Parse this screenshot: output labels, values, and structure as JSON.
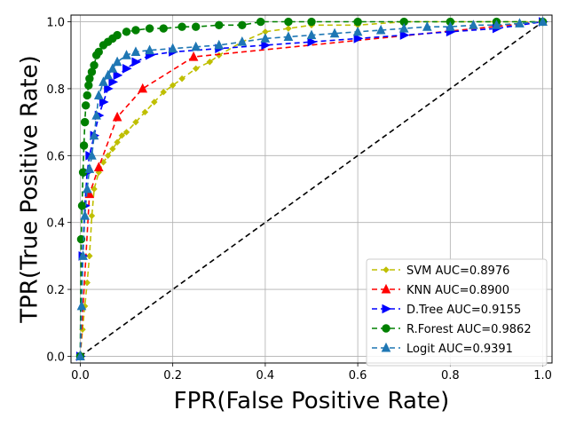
{
  "chart_data": {
    "type": "line",
    "title": "",
    "xlabel": "FPR(False Positive Rate)",
    "ylabel": "TPR(True Positive Rate)",
    "xlim": [
      -0.02,
      1.02
    ],
    "ylim": [
      -0.02,
      1.02
    ],
    "xticks": [
      "0.0",
      "0.2",
      "0.4",
      "0.6",
      "0.8",
      "1.0"
    ],
    "yticks": [
      "0.0",
      "0.2",
      "0.4",
      "0.6",
      "0.8",
      "1.0"
    ],
    "grid": true,
    "legend_position": "lower-right",
    "reference_line": {
      "x": [
        0,
        1
      ],
      "y": [
        0,
        1
      ],
      "style": "dashed",
      "color": "#000000"
    },
    "series": [
      {
        "name": "SVM AUC=0.8976",
        "color": "#bfbf00",
        "marker": "diamond-small",
        "x": [
          0,
          0.005,
          0.01,
          0.015,
          0.02,
          0.025,
          0.03,
          0.04,
          0.05,
          0.06,
          0.07,
          0.08,
          0.09,
          0.1,
          0.12,
          0.14,
          0.16,
          0.18,
          0.2,
          0.22,
          0.25,
          0.28,
          0.3,
          0.35,
          0.4,
          0.45,
          0.5,
          0.6,
          0.7,
          0.8,
          0.9,
          1.0
        ],
        "y": [
          0,
          0.08,
          0.15,
          0.22,
          0.3,
          0.42,
          0.5,
          0.55,
          0.58,
          0.6,
          0.62,
          0.64,
          0.66,
          0.67,
          0.7,
          0.73,
          0.76,
          0.79,
          0.81,
          0.83,
          0.86,
          0.88,
          0.9,
          0.94,
          0.97,
          0.98,
          0.99,
          0.99,
          1.0,
          1.0,
          1.0,
          1.0
        ]
      },
      {
        "name": "KNN AUC=0.8900",
        "color": "#ff0000",
        "marker": "triangle-up",
        "x": [
          0,
          0.02,
          0.04,
          0.08,
          0.135,
          0.245,
          1.0
        ],
        "y": [
          0,
          0.485,
          0.565,
          0.715,
          0.8,
          0.895,
          1.0
        ]
      },
      {
        "name": "D.Tree AUC=0.9155",
        "color": "#0000ff",
        "marker": "triangle-right",
        "x": [
          0,
          0.005,
          0.01,
          0.015,
          0.02,
          0.03,
          0.04,
          0.05,
          0.06,
          0.07,
          0.08,
          0.1,
          0.12,
          0.15,
          0.2,
          0.3,
          0.4,
          0.5,
          0.6,
          0.7,
          0.8,
          0.9,
          1.0
        ],
        "y": [
          0,
          0.3,
          0.45,
          0.55,
          0.6,
          0.66,
          0.72,
          0.76,
          0.8,
          0.82,
          0.84,
          0.86,
          0.88,
          0.9,
          0.91,
          0.92,
          0.93,
          0.94,
          0.95,
          0.96,
          0.97,
          0.98,
          1.0
        ]
      },
      {
        "name": "R.Forest AUC=0.9862",
        "color": "#008000",
        "marker": "circle",
        "x": [
          0,
          0.002,
          0.004,
          0.006,
          0.008,
          0.01,
          0.012,
          0.015,
          0.018,
          0.02,
          0.025,
          0.03,
          0.035,
          0.04,
          0.05,
          0.06,
          0.07,
          0.08,
          0.1,
          0.12,
          0.15,
          0.18,
          0.22,
          0.25,
          0.3,
          0.35,
          0.39,
          0.45,
          0.5,
          0.6,
          0.7,
          0.8,
          0.9,
          1.0
        ],
        "y": [
          0,
          0.35,
          0.45,
          0.55,
          0.63,
          0.7,
          0.75,
          0.78,
          0.81,
          0.83,
          0.85,
          0.87,
          0.9,
          0.91,
          0.93,
          0.94,
          0.95,
          0.96,
          0.97,
          0.975,
          0.98,
          0.98,
          0.985,
          0.985,
          0.99,
          0.99,
          1.0,
          1.0,
          1.0,
          1.0,
          1.0,
          1.0,
          1.0,
          1.0
        ]
      },
      {
        "name": "Logit AUC=0.9391",
        "color": "#1f77b4",
        "marker": "triangle-up",
        "x": [
          0,
          0.003,
          0.006,
          0.01,
          0.015,
          0.02,
          0.025,
          0.03,
          0.035,
          0.04,
          0.05,
          0.06,
          0.07,
          0.08,
          0.1,
          0.12,
          0.15,
          0.2,
          0.25,
          0.3,
          0.35,
          0.4,
          0.45,
          0.5,
          0.55,
          0.6,
          0.65,
          0.7,
          0.75,
          0.8,
          0.85,
          0.9,
          0.95,
          1.0
        ],
        "y": [
          0,
          0.15,
          0.3,
          0.42,
          0.5,
          0.56,
          0.6,
          0.66,
          0.72,
          0.78,
          0.82,
          0.84,
          0.86,
          0.88,
          0.9,
          0.91,
          0.915,
          0.92,
          0.925,
          0.93,
          0.94,
          0.95,
          0.955,
          0.96,
          0.965,
          0.97,
          0.975,
          0.98,
          0.985,
          0.985,
          0.99,
          0.99,
          0.995,
          1.0
        ]
      }
    ]
  }
}
